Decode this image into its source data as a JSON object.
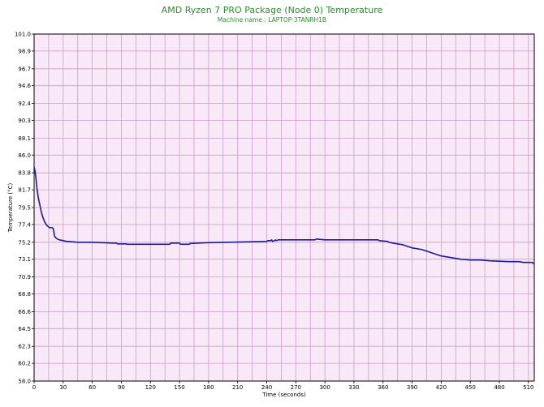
{
  "chart_data": {
    "type": "line",
    "title": "AMD Ryzen 7 PRO Package (Node 0) Temperature",
    "subtitle": "Machine name : LAPTOP-3TANRH1B",
    "xlabel": "Time (seconds)",
    "ylabel": "Temperature (°C)",
    "xlim": [
      0,
      516
    ],
    "ylim": [
      58.0,
      101.0
    ],
    "x_ticks": [
      "0",
      "30",
      "60",
      "90",
      "120",
      "150",
      "180",
      "210",
      "240",
      "270",
      "300",
      "330",
      "360",
      "390",
      "420",
      "450",
      "480",
      "510"
    ],
    "y_ticks": [
      "101.0",
      "98.9",
      "96.7",
      "94.6",
      "92.4",
      "90.3",
      "88.1",
      "86.0",
      "83.8",
      "81.7",
      "79.5",
      "77.4",
      "75.2",
      "73.1",
      "70.9",
      "68.8",
      "66.6",
      "64.5",
      "62.3",
      "60.2",
      "58.0"
    ],
    "grid": true,
    "colors": {
      "plot_bg": "#f8e8f8",
      "grid": "#c8a0c8",
      "line": "#1a1a9a",
      "title": "#2e8b2e"
    },
    "series": [
      {
        "x": [
          0,
          1,
          2,
          3,
          4,
          5,
          6,
          7,
          8,
          9,
          10,
          11,
          12,
          13,
          14,
          15,
          16,
          17,
          18,
          19,
          20,
          21,
          22,
          23,
          24,
          26,
          28,
          30,
          32,
          34,
          36,
          40,
          45,
          50,
          55,
          60,
          70,
          80,
          85,
          86,
          90,
          95,
          96,
          100,
          110,
          120,
          130,
          140,
          141,
          150,
          151,
          160,
          161,
          170,
          180,
          200,
          220,
          240,
          241,
          244,
          245,
          246,
          248,
          249,
          250,
          252,
          253,
          260,
          270,
          280,
          290,
          291,
          300,
          320,
          340,
          355,
          356,
          365,
          366,
          370,
          375,
          380,
          385,
          390,
          395,
          400,
          405,
          410,
          415,
          420,
          425,
          430,
          435,
          440,
          450,
          460,
          470,
          480,
          490,
          500,
          505,
          510,
          514,
          516
        ],
        "y": [
          84.5,
          84.0,
          83.0,
          81.8,
          81.0,
          80.3,
          79.8,
          79.2,
          78.7,
          78.3,
          78.0,
          77.7,
          77.5,
          77.3,
          77.2,
          77.1,
          77.0,
          77.0,
          77.0,
          77.0,
          76.8,
          76.0,
          75.8,
          75.7,
          75.6,
          75.5,
          75.45,
          75.4,
          75.35,
          75.3,
          75.3,
          75.25,
          75.2,
          75.2,
          75.2,
          75.2,
          75.15,
          75.1,
          75.1,
          75.0,
          75.0,
          75.0,
          74.95,
          74.95,
          74.95,
          74.95,
          74.95,
          74.95,
          75.1,
          75.1,
          74.95,
          74.95,
          75.05,
          75.1,
          75.15,
          75.2,
          75.25,
          75.3,
          75.4,
          75.4,
          75.5,
          75.3,
          75.4,
          75.5,
          75.4,
          75.5,
          75.5,
          75.5,
          75.5,
          75.5,
          75.5,
          75.6,
          75.5,
          75.5,
          75.5,
          75.5,
          75.4,
          75.3,
          75.2,
          75.1,
          75.0,
          74.9,
          74.7,
          74.5,
          74.4,
          74.3,
          74.1,
          73.9,
          73.7,
          73.5,
          73.4,
          73.3,
          73.2,
          73.1,
          73.0,
          73.0,
          72.9,
          72.85,
          72.8,
          72.8,
          72.7,
          72.7,
          72.7,
          72.5
        ]
      }
    ]
  }
}
